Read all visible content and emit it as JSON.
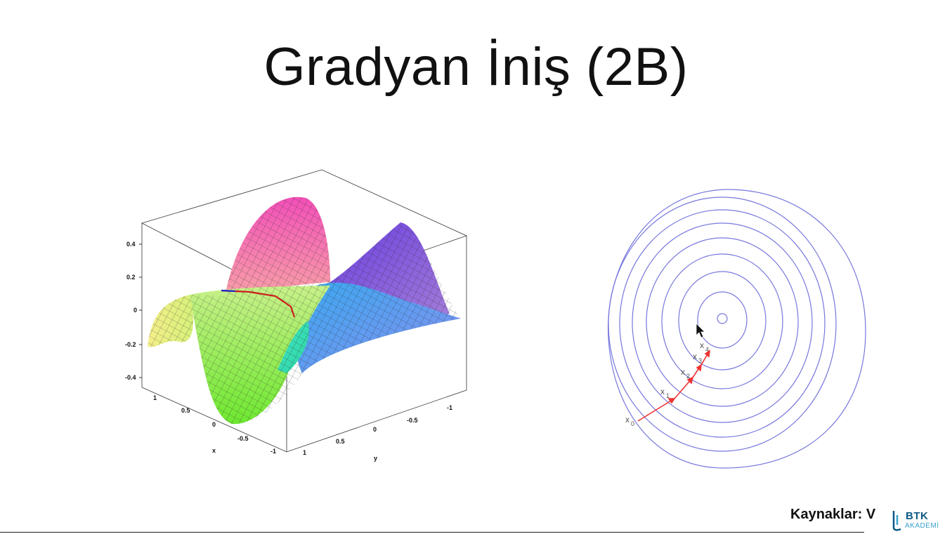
{
  "slide": {
    "title": "Gradyan İniş (2B)",
    "sources_label": "Kaynaklar: V"
  },
  "logo": {
    "name": "BTK",
    "sub": "AKADEMİ",
    "color": "#0c5a86",
    "accent": "#3aa1cf"
  },
  "surface_plot": {
    "z_ticks": [
      "0.4",
      "0.2",
      "0",
      "-0.2",
      "-0.4"
    ],
    "x_ticks": [
      "1",
      "0.5",
      "0",
      "-0.5",
      "-1"
    ],
    "y_ticks": [
      "1",
      "0.5",
      "0",
      "-0.5",
      "-1"
    ],
    "x_label": "x",
    "y_label": "y"
  },
  "contour_plot": {
    "contour_color": "#7777dd",
    "arrow_color": "#ee3333",
    "iterates": [
      {
        "base": "x",
        "sub": "0"
      },
      {
        "base": "x",
        "sub": "1"
      },
      {
        "base": "x",
        "sub": "2"
      },
      {
        "base": "x",
        "sub": "3"
      },
      {
        "base": "x",
        "sub": "4"
      }
    ]
  },
  "cursor_icon": "arrow-cursor-icon"
}
